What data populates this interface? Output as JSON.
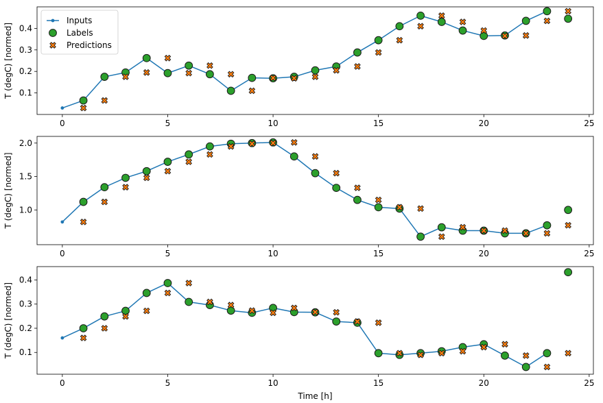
{
  "chart_data": [
    {
      "type": "scatter",
      "xlabel": "",
      "ylabel": "T (degC) [normed]",
      "xlim": [
        -1.2,
        25.2
      ],
      "ylim": [
        0.0,
        0.5
      ],
      "xticks": [
        0,
        5,
        10,
        15,
        20,
        25
      ],
      "yticks": [
        0.1,
        0.2,
        0.3,
        0.4
      ],
      "ytick_labels": [
        "0.1",
        "0.2",
        "0.3",
        "0.4"
      ],
      "legend": {
        "placement": "top-left",
        "entries": [
          "Inputs",
          "Labels",
          "Predictions"
        ]
      },
      "series": [
        {
          "name": "Inputs",
          "kind": "line",
          "color": "#1f77b4",
          "x": [
            0,
            1,
            2,
            3,
            4,
            5,
            6,
            7,
            8,
            9,
            10,
            11,
            12,
            13,
            14,
            15,
            16,
            17,
            18,
            19,
            20,
            21,
            22,
            23
          ],
          "y": [
            0.03,
            0.065,
            0.175,
            0.195,
            0.262,
            0.192,
            0.227,
            0.187,
            0.11,
            0.17,
            0.168,
            0.175,
            0.205,
            0.223,
            0.288,
            0.345,
            0.41,
            0.459,
            0.43,
            0.39,
            0.365,
            0.367,
            0.435,
            0.48
          ]
        },
        {
          "name": "Labels",
          "kind": "marker",
          "color": "#2ca02c",
          "x": [
            1,
            2,
            3,
            4,
            5,
            6,
            7,
            8,
            9,
            10,
            11,
            12,
            13,
            14,
            15,
            16,
            17,
            18,
            19,
            20,
            21,
            22,
            23,
            24
          ],
          "y": [
            0.065,
            0.175,
            0.195,
            0.262,
            0.192,
            0.227,
            0.187,
            0.11,
            0.17,
            0.168,
            0.175,
            0.205,
            0.223,
            0.288,
            0.345,
            0.41,
            0.459,
            0.43,
            0.39,
            0.365,
            0.367,
            0.435,
            0.48,
            0.445
          ]
        },
        {
          "name": "Predictions",
          "kind": "x-marker",
          "color": "#ff7f0e",
          "x": [
            1,
            2,
            3,
            4,
            5,
            6,
            7,
            8,
            9,
            10,
            11,
            12,
            13,
            14,
            15,
            16,
            17,
            18,
            19,
            20,
            21,
            22,
            23,
            24
          ],
          "y": [
            0.03,
            0.065,
            0.175,
            0.195,
            0.262,
            0.192,
            0.227,
            0.187,
            0.11,
            0.17,
            0.168,
            0.175,
            0.205,
            0.223,
            0.288,
            0.345,
            0.41,
            0.459,
            0.43,
            0.39,
            0.365,
            0.367,
            0.435,
            0.48
          ]
        }
      ]
    },
    {
      "type": "scatter",
      "xlabel": "",
      "ylabel": "T (degC) [normed]",
      "xlim": [
        -1.2,
        25.2
      ],
      "ylim": [
        0.48,
        2.1
      ],
      "xticks": [
        0,
        5,
        10,
        15,
        20,
        25
      ],
      "yticks": [
        1.0,
        1.5,
        2.0
      ],
      "ytick_labels": [
        "1.0",
        "1.5",
        "2.0"
      ],
      "series": [
        {
          "name": "Inputs",
          "kind": "line",
          "color": "#1f77b4",
          "x": [
            0,
            1,
            2,
            3,
            4,
            5,
            6,
            7,
            8,
            9,
            10,
            11,
            12,
            13,
            14,
            15,
            16,
            17,
            18,
            19,
            20,
            21,
            22,
            23
          ],
          "y": [
            0.82,
            1.12,
            1.34,
            1.48,
            1.58,
            1.72,
            1.83,
            1.95,
            1.99,
            2.0,
            2.01,
            1.8,
            1.55,
            1.33,
            1.15,
            1.04,
            1.02,
            0.6,
            0.74,
            0.69,
            0.69,
            0.65,
            0.65,
            0.77
          ]
        },
        {
          "name": "Labels",
          "kind": "marker",
          "color": "#2ca02c",
          "x": [
            1,
            2,
            3,
            4,
            5,
            6,
            7,
            8,
            9,
            10,
            11,
            12,
            13,
            14,
            15,
            16,
            17,
            18,
            19,
            20,
            21,
            22,
            23,
            24
          ],
          "y": [
            1.12,
            1.34,
            1.48,
            1.58,
            1.72,
            1.83,
            1.95,
            1.99,
            2.0,
            2.01,
            1.8,
            1.55,
            1.33,
            1.15,
            1.04,
            1.02,
            0.6,
            0.74,
            0.69,
            0.69,
            0.65,
            0.65,
            0.77,
            1.0
          ]
        },
        {
          "name": "Predictions",
          "kind": "x-marker",
          "color": "#ff7f0e",
          "x": [
            1,
            2,
            3,
            4,
            5,
            6,
            7,
            8,
            9,
            10,
            11,
            12,
            13,
            14,
            15,
            16,
            17,
            18,
            19,
            20,
            21,
            22,
            23,
            24
          ],
          "y": [
            0.82,
            1.12,
            1.34,
            1.48,
            1.58,
            1.72,
            1.83,
            1.95,
            1.99,
            2.0,
            2.01,
            1.8,
            1.55,
            1.33,
            1.15,
            1.04,
            1.02,
            0.6,
            0.74,
            0.69,
            0.69,
            0.65,
            0.65,
            0.77
          ]
        }
      ]
    },
    {
      "type": "scatter",
      "xlabel": "Time [h]",
      "ylabel": "T (degC) [normed]",
      "xlim": [
        -1.2,
        25.2
      ],
      "ylim": [
        0.01,
        0.455
      ],
      "xticks": [
        0,
        5,
        10,
        15,
        20,
        25
      ],
      "yticks": [
        0.1,
        0.2,
        0.3,
        0.4
      ],
      "ytick_labels": [
        "0.1",
        "0.2",
        "0.3",
        "0.4"
      ],
      "series": [
        {
          "name": "Inputs",
          "kind": "line",
          "color": "#1f77b4",
          "x": [
            0,
            1,
            2,
            3,
            4,
            5,
            6,
            7,
            8,
            9,
            10,
            11,
            12,
            13,
            14,
            15,
            16,
            17,
            18,
            19,
            20,
            21,
            22,
            23
          ],
          "y": [
            0.16,
            0.2,
            0.249,
            0.272,
            0.346,
            0.387,
            0.309,
            0.296,
            0.273,
            0.264,
            0.284,
            0.267,
            0.266,
            0.228,
            0.223,
            0.097,
            0.09,
            0.097,
            0.105,
            0.122,
            0.134,
            0.087,
            0.04,
            0.097
          ]
        },
        {
          "name": "Labels",
          "kind": "marker",
          "color": "#2ca02c",
          "x": [
            1,
            2,
            3,
            4,
            5,
            6,
            7,
            8,
            9,
            10,
            11,
            12,
            13,
            14,
            15,
            16,
            17,
            18,
            19,
            20,
            21,
            22,
            23,
            24
          ],
          "y": [
            0.2,
            0.249,
            0.272,
            0.346,
            0.387,
            0.309,
            0.296,
            0.273,
            0.264,
            0.284,
            0.267,
            0.266,
            0.228,
            0.223,
            0.097,
            0.09,
            0.097,
            0.105,
            0.122,
            0.134,
            0.087,
            0.04,
            0.097,
            0.432
          ]
        },
        {
          "name": "Predictions",
          "kind": "x-marker",
          "color": "#ff7f0e",
          "x": [
            1,
            2,
            3,
            4,
            5,
            6,
            7,
            8,
            9,
            10,
            11,
            12,
            13,
            14,
            15,
            16,
            17,
            18,
            19,
            20,
            21,
            22,
            23,
            24
          ],
          "y": [
            0.16,
            0.2,
            0.249,
            0.272,
            0.346,
            0.387,
            0.309,
            0.296,
            0.273,
            0.264,
            0.284,
            0.267,
            0.266,
            0.228,
            0.223,
            0.097,
            0.09,
            0.097,
            0.105,
            0.122,
            0.134,
            0.087,
            0.04,
            0.097
          ]
        }
      ]
    }
  ]
}
